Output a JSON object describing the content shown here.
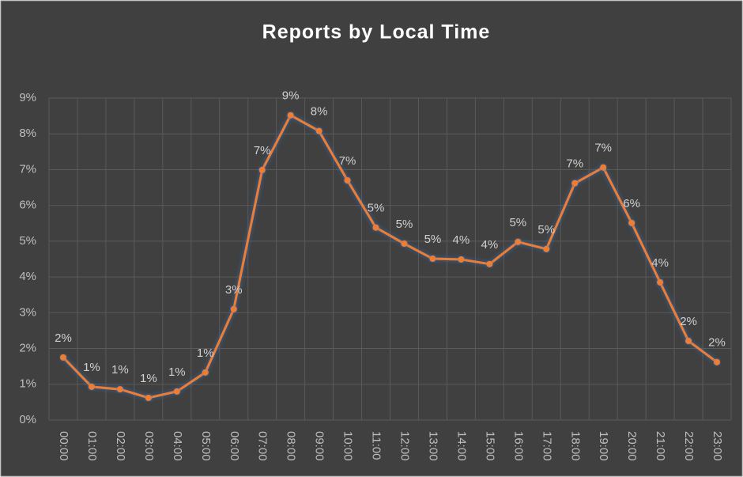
{
  "chart_data": {
    "type": "line",
    "title": "Reports by Local Time",
    "categories": [
      "00:00",
      "01:00",
      "02:00",
      "03:00",
      "04:00",
      "05:00",
      "06:00",
      "07:00",
      "08:00",
      "09:00",
      "10:00",
      "11:00",
      "12:00",
      "13:00",
      "14:00",
      "15:00",
      "16:00",
      "17:00",
      "18:00",
      "19:00",
      "20:00",
      "21:00",
      "22:00",
      "23:00"
    ],
    "values": [
      1.75,
      0.93,
      0.86,
      0.62,
      0.8,
      1.33,
      3.1,
      6.99,
      8.52,
      8.08,
      6.7,
      5.38,
      4.93,
      4.51,
      4.49,
      4.36,
      4.98,
      4.78,
      6.62,
      7.06,
      5.51,
      3.85,
      2.21,
      1.62
    ],
    "value_labels": [
      "2%",
      "1%",
      "1%",
      "1%",
      "1%",
      "1%",
      "3%",
      "7%",
      "9%",
      "8%",
      "7%",
      "5%",
      "5%",
      "5%",
      "4%",
      "4%",
      "5%",
      "5%",
      "7%",
      "7%",
      "6%",
      "4%",
      "2%",
      "2%"
    ],
    "color": "#ed7d31",
    "ylim": [
      0,
      9
    ],
    "yticks": [
      {
        "value": 0,
        "label": "0%"
      },
      {
        "value": 1,
        "label": "1%"
      },
      {
        "value": 2,
        "label": "2%"
      },
      {
        "value": 3,
        "label": "3%"
      },
      {
        "value": 4,
        "label": "4%"
      },
      {
        "value": 5,
        "label": "5%"
      },
      {
        "value": 6,
        "label": "6%"
      },
      {
        "value": 7,
        "label": "7%"
      },
      {
        "value": 8,
        "label": "8%"
      },
      {
        "value": 9,
        "label": "9%"
      }
    ],
    "grid": true
  }
}
